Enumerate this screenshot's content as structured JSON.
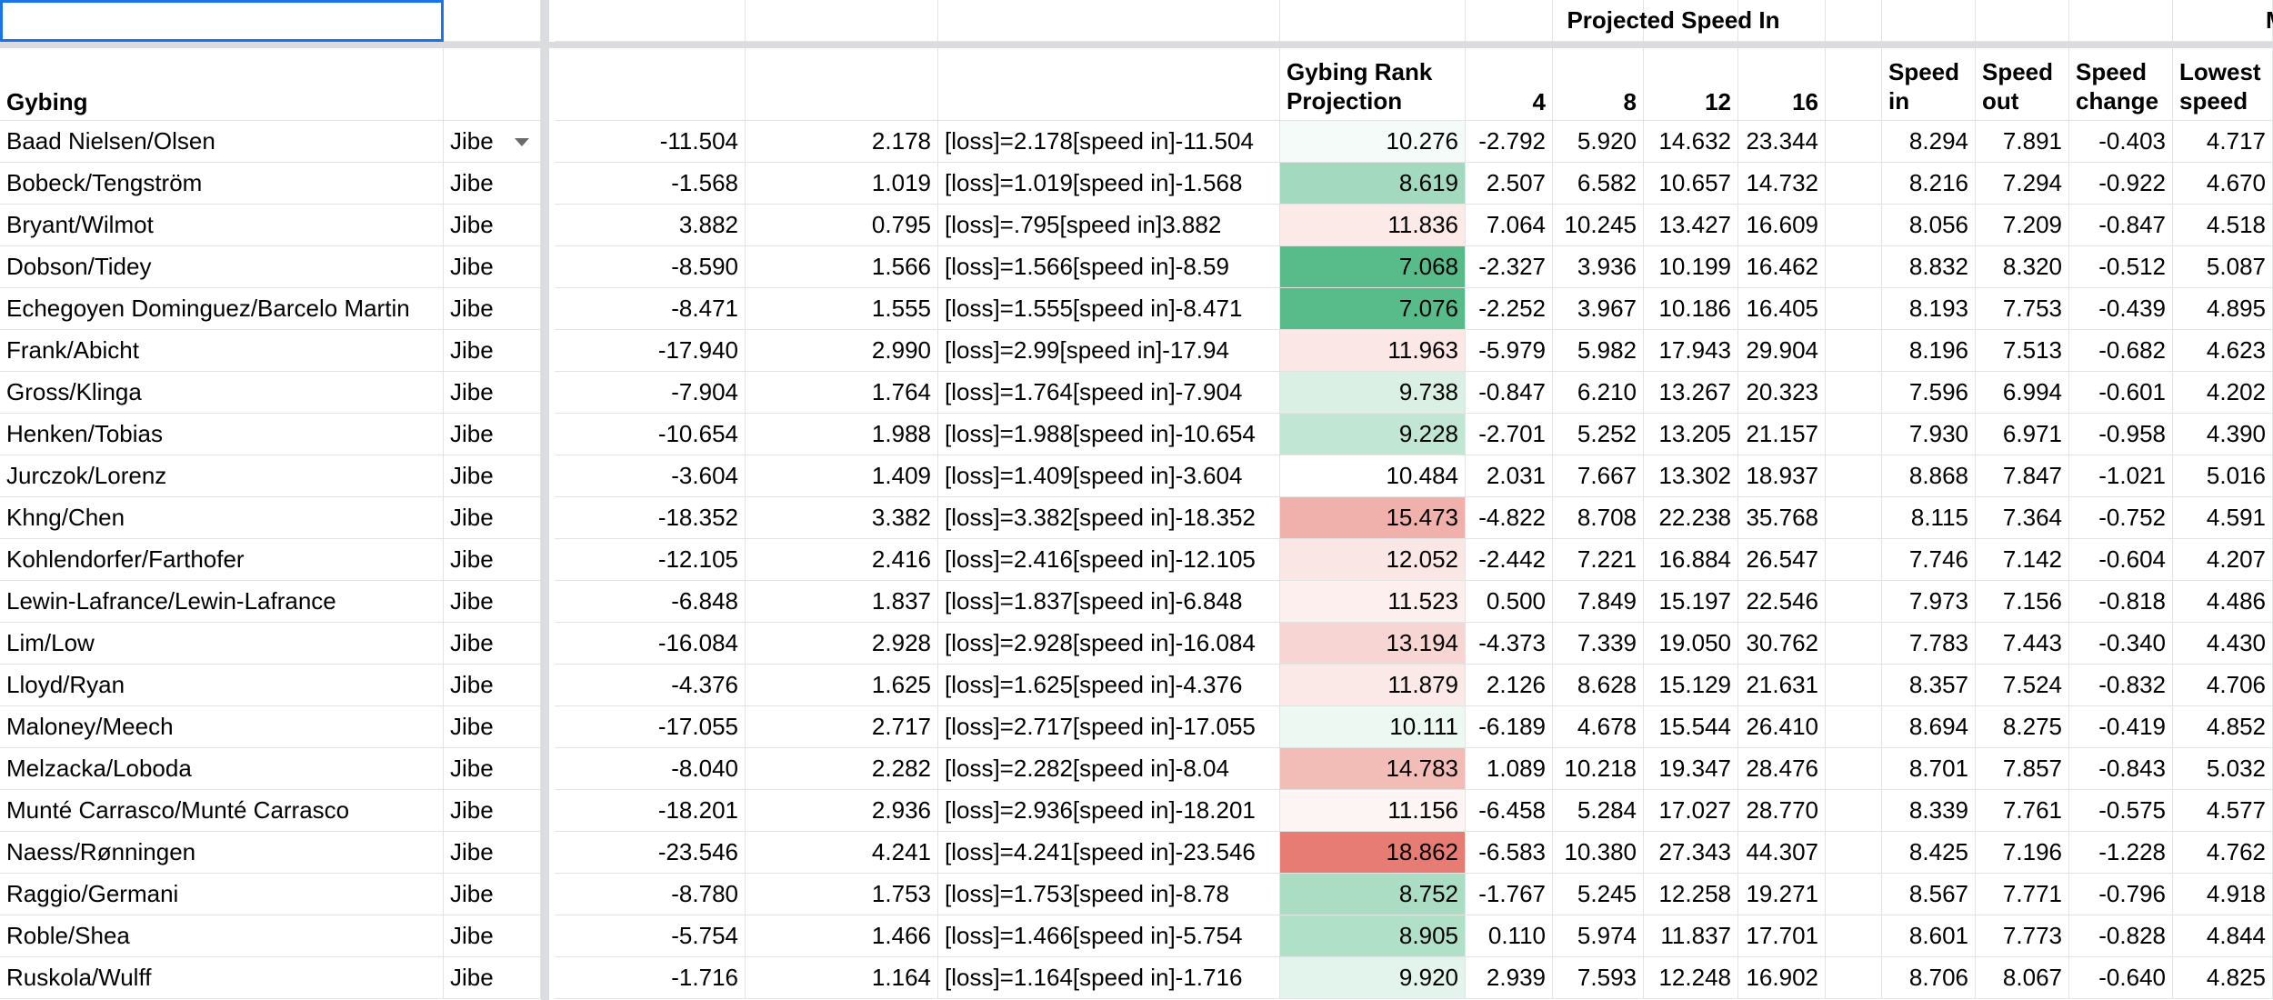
{
  "top_header": "Projected Speed In",
  "top_header_cut": "M",
  "headers": {
    "gybing": "Gybing",
    "rank_projection": "Gybing Rank Projection",
    "speed4": "4",
    "speed8": "8",
    "speed12": "12",
    "speed16": "16",
    "speed_in": "Speed in",
    "speed_out": "Speed out",
    "speed_change": "Speed change",
    "lowest_speed": "Lowest speed"
  },
  "colors": {
    "grid": "#e2e3e3",
    "freeze_bar": "#dadce0",
    "selection": "#1a73e8",
    "good": "#57bb8a",
    "neutral": "#ffffff",
    "bad": "#e67c73"
  },
  "rows": [
    {
      "team": "Baad Nielsen/Olsen",
      "maneuver": "Jibe",
      "intercept": "-11.504",
      "loss": "2.178",
      "formula": "[loss]=2.178[speed in]-11.504",
      "rank": "10.276",
      "p4": "-2.792",
      "p8": "5.920",
      "p12": "14.632",
      "p16": "23.344",
      "speed_in": "8.294",
      "speed_out": "7.891",
      "speed_change": "-0.403",
      "lowest": "4.717"
    },
    {
      "team": "Bobeck/Tengström",
      "maneuver": "Jibe",
      "intercept": "-1.568",
      "loss": "1.019",
      "formula": "[loss]=1.019[speed in]-1.568",
      "rank": "8.619",
      "p4": "2.507",
      "p8": "6.582",
      "p12": "10.657",
      "p16": "14.732",
      "speed_in": "8.216",
      "speed_out": "7.294",
      "speed_change": "-0.922",
      "lowest": "4.670"
    },
    {
      "team": "Bryant/Wilmot",
      "maneuver": "Jibe",
      "intercept": "3.882",
      "loss": "0.795",
      "formula": "[loss]=.795[speed in]3.882",
      "rank": "11.836",
      "p4": "7.064",
      "p8": "10.245",
      "p12": "13.427",
      "p16": "16.609",
      "speed_in": "8.056",
      "speed_out": "7.209",
      "speed_change": "-0.847",
      "lowest": "4.518"
    },
    {
      "team": "Dobson/Tidey",
      "maneuver": "Jibe",
      "intercept": "-8.590",
      "loss": "1.566",
      "formula": "[loss]=1.566[speed in]-8.59",
      "rank": "7.068",
      "p4": "-2.327",
      "p8": "3.936",
      "p12": "10.199",
      "p16": "16.462",
      "speed_in": "8.832",
      "speed_out": "8.320",
      "speed_change": "-0.512",
      "lowest": "5.087"
    },
    {
      "team": "Echegoyen Dominguez/Barcelo Martin",
      "maneuver": "Jibe",
      "intercept": "-8.471",
      "loss": "1.555",
      "formula": "[loss]=1.555[speed in]-8.471",
      "rank": "7.076",
      "p4": "-2.252",
      "p8": "3.967",
      "p12": "10.186",
      "p16": "16.405",
      "speed_in": "8.193",
      "speed_out": "7.753",
      "speed_change": "-0.439",
      "lowest": "4.895"
    },
    {
      "team": "Frank/Abicht",
      "maneuver": "Jibe",
      "intercept": "-17.940",
      "loss": "2.990",
      "formula": "[loss]=2.99[speed in]-17.94",
      "rank": "11.963",
      "p4": "-5.979",
      "p8": "5.982",
      "p12": "17.943",
      "p16": "29.904",
      "speed_in": "8.196",
      "speed_out": "7.513",
      "speed_change": "-0.682",
      "lowest": "4.623"
    },
    {
      "team": "Gross/Klinga",
      "maneuver": "Jibe",
      "intercept": "-7.904",
      "loss": "1.764",
      "formula": "[loss]=1.764[speed in]-7.904",
      "rank": "9.738",
      "p4": "-0.847",
      "p8": "6.210",
      "p12": "13.267",
      "p16": "20.323",
      "speed_in": "7.596",
      "speed_out": "6.994",
      "speed_change": "-0.601",
      "lowest": "4.202"
    },
    {
      "team": "Henken/Tobias",
      "maneuver": "Jibe",
      "intercept": "-10.654",
      "loss": "1.988",
      "formula": "[loss]=1.988[speed in]-10.654",
      "rank": "9.228",
      "p4": "-2.701",
      "p8": "5.252",
      "p12": "13.205",
      "p16": "21.157",
      "speed_in": "7.930",
      "speed_out": "6.971",
      "speed_change": "-0.958",
      "lowest": "4.390"
    },
    {
      "team": "Jurczok/Lorenz",
      "maneuver": "Jibe",
      "intercept": "-3.604",
      "loss": "1.409",
      "formula": "[loss]=1.409[speed in]-3.604",
      "rank": "10.484",
      "p4": "2.031",
      "p8": "7.667",
      "p12": "13.302",
      "p16": "18.937",
      "speed_in": "8.868",
      "speed_out": "7.847",
      "speed_change": "-1.021",
      "lowest": "5.016"
    },
    {
      "team": "Khng/Chen",
      "maneuver": "Jibe",
      "intercept": "-18.352",
      "loss": "3.382",
      "formula": "[loss]=3.382[speed in]-18.352",
      "rank": "15.473",
      "p4": "-4.822",
      "p8": "8.708",
      "p12": "22.238",
      "p16": "35.768",
      "speed_in": "8.115",
      "speed_out": "7.364",
      "speed_change": "-0.752",
      "lowest": "4.591"
    },
    {
      "team": "Kohlendorfer/Farthofer",
      "maneuver": "Jibe",
      "intercept": "-12.105",
      "loss": "2.416",
      "formula": "[loss]=2.416[speed in]-12.105",
      "rank": "12.052",
      "p4": "-2.442",
      "p8": "7.221",
      "p12": "16.884",
      "p16": "26.547",
      "speed_in": "7.746",
      "speed_out": "7.142",
      "speed_change": "-0.604",
      "lowest": "4.207"
    },
    {
      "team": "Lewin-Lafrance/Lewin-Lafrance",
      "maneuver": "Jibe",
      "intercept": "-6.848",
      "loss": "1.837",
      "formula": "[loss]=1.837[speed in]-6.848",
      "rank": "11.523",
      "p4": "0.500",
      "p8": "7.849",
      "p12": "15.197",
      "p16": "22.546",
      "speed_in": "7.973",
      "speed_out": "7.156",
      "speed_change": "-0.818",
      "lowest": "4.486"
    },
    {
      "team": "Lim/Low",
      "maneuver": "Jibe",
      "intercept": "-16.084",
      "loss": "2.928",
      "formula": "[loss]=2.928[speed in]-16.084",
      "rank": "13.194",
      "p4": "-4.373",
      "p8": "7.339",
      "p12": "19.050",
      "p16": "30.762",
      "speed_in": "7.783",
      "speed_out": "7.443",
      "speed_change": "-0.340",
      "lowest": "4.430"
    },
    {
      "team": "Lloyd/Ryan",
      "maneuver": "Jibe",
      "intercept": "-4.376",
      "loss": "1.625",
      "formula": "[loss]=1.625[speed in]-4.376",
      "rank": "11.879",
      "p4": "2.126",
      "p8": "8.628",
      "p12": "15.129",
      "p16": "21.631",
      "speed_in": "8.357",
      "speed_out": "7.524",
      "speed_change": "-0.832",
      "lowest": "4.706"
    },
    {
      "team": "Maloney/Meech",
      "maneuver": "Jibe",
      "intercept": "-17.055",
      "loss": "2.717",
      "formula": "[loss]=2.717[speed in]-17.055",
      "rank": "10.111",
      "p4": "-6.189",
      "p8": "4.678",
      "p12": "15.544",
      "p16": "26.410",
      "speed_in": "8.694",
      "speed_out": "8.275",
      "speed_change": "-0.419",
      "lowest": "4.852"
    },
    {
      "team": "Melzacka/Loboda",
      "maneuver": "Jibe",
      "intercept": "-8.040",
      "loss": "2.282",
      "formula": "[loss]=2.282[speed in]-8.04",
      "rank": "14.783",
      "p4": "1.089",
      "p8": "10.218",
      "p12": "19.347",
      "p16": "28.476",
      "speed_in": "8.701",
      "speed_out": "7.857",
      "speed_change": "-0.843",
      "lowest": "5.032"
    },
    {
      "team": "Munté Carrasco/Munté Carrasco",
      "maneuver": "Jibe",
      "intercept": "-18.201",
      "loss": "2.936",
      "formula": "[loss]=2.936[speed in]-18.201",
      "rank": "11.156",
      "p4": "-6.458",
      "p8": "5.284",
      "p12": "17.027",
      "p16": "28.770",
      "speed_in": "8.339",
      "speed_out": "7.761",
      "speed_change": "-0.575",
      "lowest": "4.577"
    },
    {
      "team": "Naess/Rønningen",
      "maneuver": "Jibe",
      "intercept": "-23.546",
      "loss": "4.241",
      "formula": "[loss]=4.241[speed in]-23.546",
      "rank": "18.862",
      "p4": "-6.583",
      "p8": "10.380",
      "p12": "27.343",
      "p16": "44.307",
      "speed_in": "8.425",
      "speed_out": "7.196",
      "speed_change": "-1.228",
      "lowest": "4.762"
    },
    {
      "team": "Raggio/Germani",
      "maneuver": "Jibe",
      "intercept": "-8.780",
      "loss": "1.753",
      "formula": "[loss]=1.753[speed in]-8.78",
      "rank": "8.752",
      "p4": "-1.767",
      "p8": "5.245",
      "p12": "12.258",
      "p16": "19.271",
      "speed_in": "8.567",
      "speed_out": "7.771",
      "speed_change": "-0.796",
      "lowest": "4.918"
    },
    {
      "team": "Roble/Shea",
      "maneuver": "Jibe",
      "intercept": "-5.754",
      "loss": "1.466",
      "formula": "[loss]=1.466[speed in]-5.754",
      "rank": "8.905",
      "p4": "0.110",
      "p8": "5.974",
      "p12": "11.837",
      "p16": "17.701",
      "speed_in": "8.601",
      "speed_out": "7.773",
      "speed_change": "-0.828",
      "lowest": "4.844"
    },
    {
      "team": "Ruskola/Wulff",
      "maneuver": "Jibe",
      "intercept": "-1.716",
      "loss": "1.164",
      "formula": "[loss]=1.164[speed in]-1.716",
      "rank": "9.920",
      "p4": "2.939",
      "p8": "7.593",
      "p12": "12.248",
      "p16": "16.902",
      "speed_in": "8.706",
      "speed_out": "8.067",
      "speed_change": "-0.640",
      "lowest": "4.825"
    }
  ]
}
